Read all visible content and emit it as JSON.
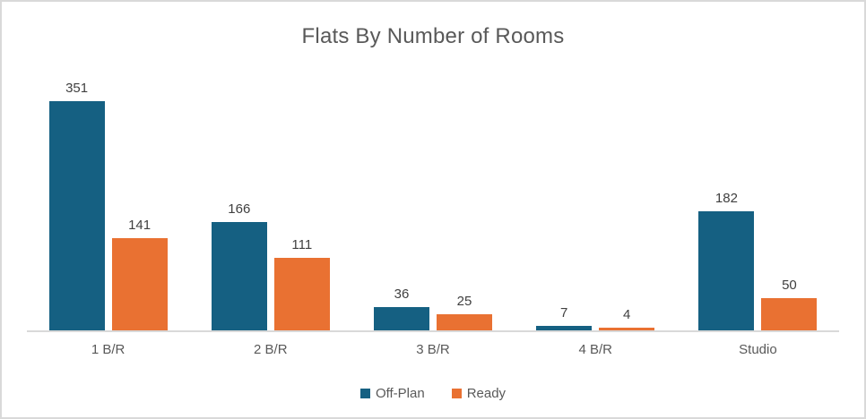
{
  "chart": {
    "title": "Flats By Number of Rooms",
    "colors": {
      "off_plan": "#156082",
      "ready": "#E97132",
      "frame_border": "#D9D9D9",
      "axis_line": "#D9D9D9",
      "title_text": "#595959",
      "axis_text": "#595959",
      "data_label_text": "#404040",
      "background": "#FFFFFF"
    }
  },
  "chart_data": {
    "type": "bar",
    "title": "Flats By Number of Rooms",
    "categories": [
      "1 B/R",
      "2 B/R",
      "3 B/R",
      "4 B/R",
      "Studio"
    ],
    "series": [
      {
        "name": "Off-Plan",
        "color": "#156082",
        "values": [
          351,
          166,
          36,
          7,
          182
        ]
      },
      {
        "name": "Ready",
        "color": "#E97132",
        "values": [
          141,
          111,
          25,
          4,
          50
        ]
      }
    ],
    "xlabel": "",
    "ylabel": "",
    "y_axis_visible": false,
    "x_axis_visible": true,
    "grid": false,
    "data_labels": true,
    "legend_position": "bottom"
  }
}
